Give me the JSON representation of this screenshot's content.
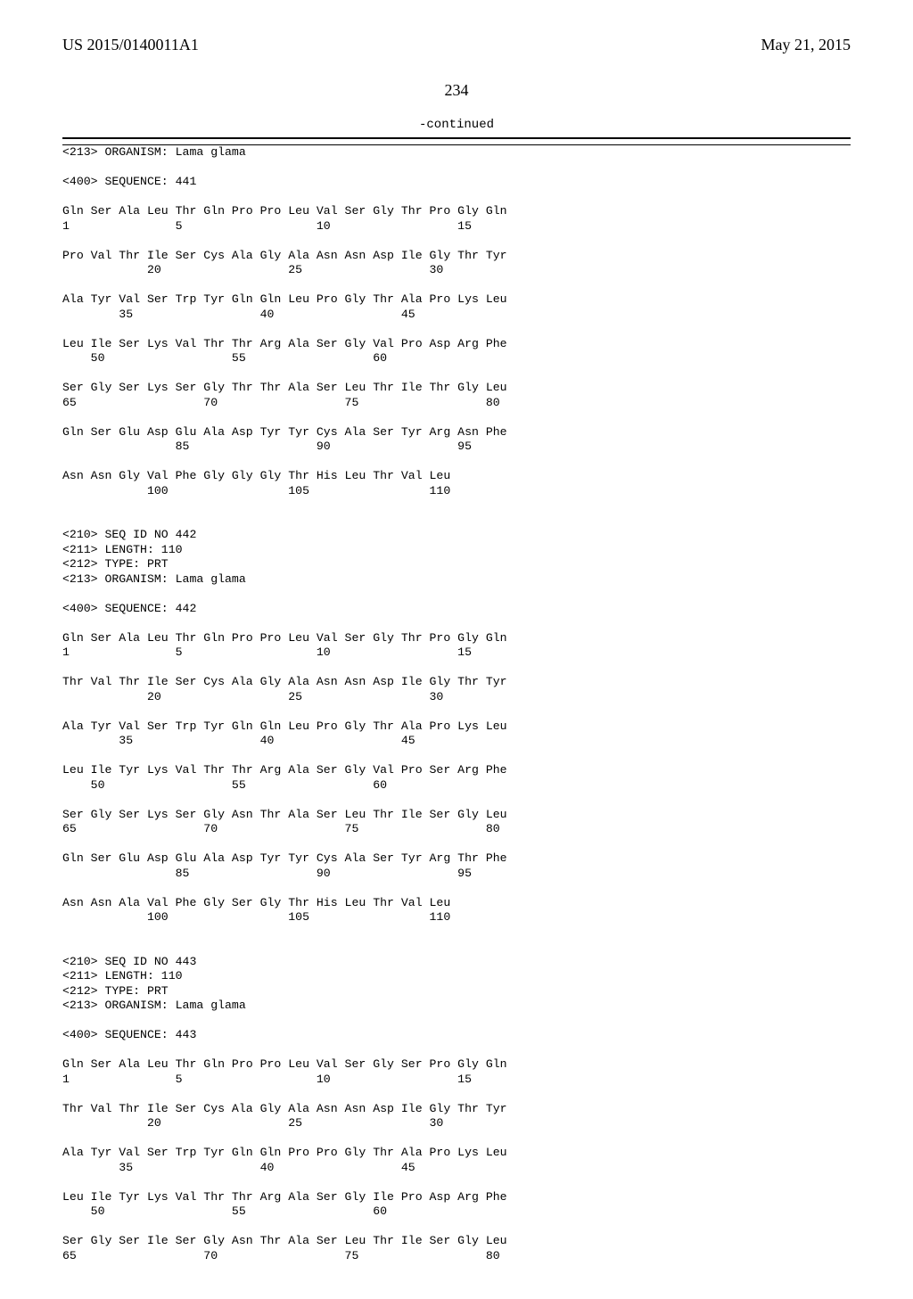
{
  "header": {
    "left": "US 2015/0140011A1",
    "right": "May 21, 2015"
  },
  "pagenum": "234",
  "continued": "-continued",
  "body": "<213> ORGANISM: Lama glama\n\n<400> SEQUENCE: 441\n\nGln Ser Ala Leu Thr Gln Pro Pro Leu Val Ser Gly Thr Pro Gly Gln\n1               5                   10                  15\n\nPro Val Thr Ile Ser Cys Ala Gly Ala Asn Asn Asp Ile Gly Thr Tyr\n            20                  25                  30\n\nAla Tyr Val Ser Trp Tyr Gln Gln Leu Pro Gly Thr Ala Pro Lys Leu\n        35                  40                  45\n\nLeu Ile Ser Lys Val Thr Thr Arg Ala Ser Gly Val Pro Asp Arg Phe\n    50                  55                  60\n\nSer Gly Ser Lys Ser Gly Thr Thr Ala Ser Leu Thr Ile Thr Gly Leu\n65                  70                  75                  80\n\nGln Ser Glu Asp Glu Ala Asp Tyr Tyr Cys Ala Ser Tyr Arg Asn Phe\n                85                  90                  95\n\nAsn Asn Gly Val Phe Gly Gly Gly Thr His Leu Thr Val Leu\n            100                 105                 110\n\n\n<210> SEQ ID NO 442\n<211> LENGTH: 110\n<212> TYPE: PRT\n<213> ORGANISM: Lama glama\n\n<400> SEQUENCE: 442\n\nGln Ser Ala Leu Thr Gln Pro Pro Leu Val Ser Gly Thr Pro Gly Gln\n1               5                   10                  15\n\nThr Val Thr Ile Ser Cys Ala Gly Ala Asn Asn Asp Ile Gly Thr Tyr\n            20                  25                  30\n\nAla Tyr Val Ser Trp Tyr Gln Gln Leu Pro Gly Thr Ala Pro Lys Leu\n        35                  40                  45\n\nLeu Ile Tyr Lys Val Thr Thr Arg Ala Ser Gly Val Pro Ser Arg Phe\n    50                  55                  60\n\nSer Gly Ser Lys Ser Gly Asn Thr Ala Ser Leu Thr Ile Ser Gly Leu\n65                  70                  75                  80\n\nGln Ser Glu Asp Glu Ala Asp Tyr Tyr Cys Ala Ser Tyr Arg Thr Phe\n                85                  90                  95\n\nAsn Asn Ala Val Phe Gly Ser Gly Thr His Leu Thr Val Leu\n            100                 105                 110\n\n\n<210> SEQ ID NO 443\n<211> LENGTH: 110\n<212> TYPE: PRT\n<213> ORGANISM: Lama glama\n\n<400> SEQUENCE: 443\n\nGln Ser Ala Leu Thr Gln Pro Pro Leu Val Ser Gly Ser Pro Gly Gln\n1               5                   10                  15\n\nThr Val Thr Ile Ser Cys Ala Gly Ala Asn Asn Asp Ile Gly Thr Tyr\n            20                  25                  30\n\nAla Tyr Val Ser Trp Tyr Gln Gln Pro Pro Gly Thr Ala Pro Lys Leu\n        35                  40                  45\n\nLeu Ile Tyr Lys Val Thr Thr Arg Ala Ser Gly Ile Pro Asp Arg Phe\n    50                  55                  60\n\nSer Gly Ser Ile Ser Gly Asn Thr Ala Ser Leu Thr Ile Ser Gly Leu\n65                  70                  75                  80"
}
